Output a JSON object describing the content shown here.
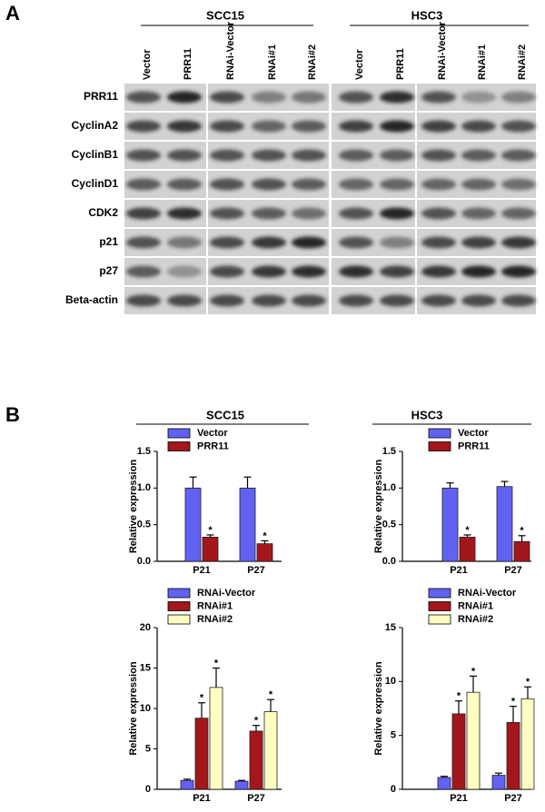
{
  "panel_labels": [
    "A",
    "B"
  ],
  "blot": {
    "groups": [
      {
        "name": "SCC15",
        "lanes": [
          "Vector",
          "PRR11",
          "RNAi-Vector",
          "RNAi#1",
          "RNAi#2"
        ]
      },
      {
        "name": "HSC3",
        "lanes": [
          "Vector",
          "PRR11",
          "RNAi-Vector",
          "RNAi#1",
          "RNAi#2"
        ]
      }
    ],
    "rows": [
      "PRR11",
      "CyclinA2",
      "CyclinB1",
      "CyclinD1",
      "CDK2",
      "p21",
      "p27",
      "Beta-actin"
    ]
  },
  "chart_data": [
    {
      "type": "bar",
      "title": "SCC15",
      "y_label": "Relative expression",
      "categories": [
        "P21",
        "P27"
      ],
      "series": [
        {
          "name": "Vector",
          "color": "#6262f2",
          "values": [
            1.0,
            1.0
          ],
          "errors": [
            0.15,
            0.15
          ]
        },
        {
          "name": "PRR11",
          "color": "#a3161b",
          "values": [
            0.33,
            0.24
          ],
          "errors": [
            0.03,
            0.04
          ],
          "significance": [
            "*",
            "*"
          ]
        }
      ],
      "ylim": [
        0,
        1.5
      ],
      "yticks": [
        {
          "value": 0,
          "label": "0.0"
        },
        {
          "value": 0.5,
          "label": "0.5"
        },
        {
          "value": 1,
          "label": "1.0"
        },
        {
          "value": 1.5,
          "label": "1.5"
        }
      ]
    },
    {
      "type": "bar",
      "title": "HSC3",
      "y_label": "Relative expression",
      "categories": [
        "P21",
        "P27"
      ],
      "series": [
        {
          "name": "Vector",
          "color": "#6262f2",
          "values": [
            1.0,
            1.02
          ],
          "errors": [
            0.07,
            0.07
          ]
        },
        {
          "name": "PRR11",
          "color": "#a3161b",
          "values": [
            0.33,
            0.27
          ],
          "errors": [
            0.03,
            0.08
          ],
          "significance": [
            "*",
            "*"
          ]
        }
      ],
      "ylim": [
        0,
        1.5
      ],
      "yticks": [
        {
          "value": 0,
          "label": "0.0"
        },
        {
          "value": 0.5,
          "label": "0.5"
        },
        {
          "value": 1,
          "label": "1.0"
        },
        {
          "value": 1.5,
          "label": "1.5"
        }
      ]
    },
    {
      "type": "bar",
      "y_label": "Relative expression",
      "categories": [
        "P21",
        "P27"
      ],
      "series": [
        {
          "name": "RNAi-Vector",
          "color": "#6262f2",
          "values": [
            1.1,
            1.0
          ],
          "errors": [
            0.15,
            0.1
          ]
        },
        {
          "name": "RNAi#1",
          "color": "#a3161b",
          "values": [
            8.8,
            7.2
          ],
          "errors": [
            1.9,
            0.7
          ],
          "significance": [
            "*",
            "*"
          ]
        },
        {
          "name": "RNAi#2",
          "color": "#ffffc2",
          "values": [
            12.6,
            9.6
          ],
          "errors": [
            2.4,
            1.5
          ],
          "significance": [
            "*",
            "*"
          ]
        }
      ],
      "ylim": [
        0,
        20
      ],
      "yticks": [
        0,
        5,
        10,
        15,
        20
      ]
    },
    {
      "type": "bar",
      "y_label": "Relative expression",
      "categories": [
        "P21",
        "P27"
      ],
      "series": [
        {
          "name": "RNAi-Vector",
          "color": "#6262f2",
          "values": [
            1.1,
            1.3
          ],
          "errors": [
            0.1,
            0.2
          ]
        },
        {
          "name": "RNAi#1",
          "color": "#a3161b",
          "values": [
            7.0,
            6.2
          ],
          "errors": [
            1.2,
            1.5
          ],
          "significance": [
            "*",
            "*"
          ]
        },
        {
          "name": "RNAi#2",
          "color": "#ffffc2",
          "values": [
            9.0,
            8.4
          ],
          "errors": [
            1.5,
            1.1
          ],
          "significance": [
            "*",
            "*"
          ]
        }
      ],
      "ylim": [
        0,
        15
      ],
      "yticks": [
        0,
        5,
        10,
        15
      ]
    }
  ]
}
